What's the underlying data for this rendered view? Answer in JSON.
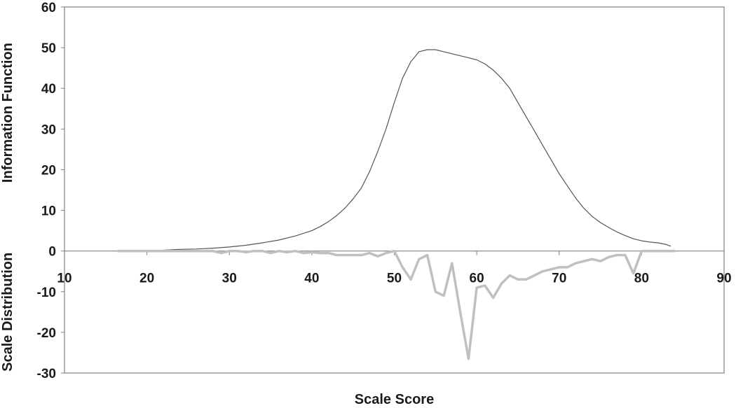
{
  "chart_data": {
    "type": "line",
    "title": "",
    "xlabel": "Scale Score",
    "ylabel_upper": "Information Function",
    "ylabel_lower": "Scale Distribution",
    "xlim": [
      10,
      90
    ],
    "ylim": [
      -30,
      60
    ],
    "x_ticks": [
      10,
      20,
      30,
      40,
      50,
      60,
      70,
      80,
      90
    ],
    "y_ticks": [
      -30,
      -20,
      -10,
      0,
      10,
      20,
      30,
      40,
      50,
      60
    ],
    "grid": false,
    "legend": "none",
    "series": [
      {
        "color": "#555555",
        "x": [
          16.5,
          18,
          20,
          22,
          24,
          26,
          28,
          30,
          32,
          34,
          36,
          38,
          40,
          41,
          42,
          43,
          44,
          45,
          46,
          47,
          48,
          49,
          50,
          51,
          52,
          53,
          54,
          55,
          56,
          57,
          58,
          59,
          60,
          61,
          62,
          63,
          64,
          65,
          66,
          67,
          68,
          69,
          70,
          71,
          72,
          73,
          74,
          75,
          76,
          77,
          78,
          79,
          80,
          81,
          82,
          83,
          83.5
        ],
        "values": [
          0,
          0,
          0,
          0.2,
          0.4,
          0.5,
          0.7,
          1.0,
          1.4,
          2.0,
          2.7,
          3.7,
          5.0,
          6.0,
          7.2,
          8.7,
          10.5,
          12.8,
          15.5,
          19.5,
          24.5,
          30.0,
          36.5,
          42.5,
          46.5,
          49.0,
          49.5,
          49.5,
          49.0,
          48.5,
          48.0,
          47.5,
          47.0,
          46.0,
          44.5,
          42.5,
          40.0,
          36.5,
          33.0,
          29.5,
          26.0,
          22.5,
          19.0,
          16.0,
          13.0,
          10.5,
          8.5,
          7.0,
          5.8,
          4.7,
          3.8,
          3.0,
          2.5,
          2.2,
          2.0,
          1.6,
          1.2
        ]
      },
      {
        "color": "#c0c0c0",
        "x": [
          16.5,
          18,
          20,
          22,
          24,
          26,
          28,
          29,
          30,
          31,
          32,
          33,
          34,
          35,
          36,
          37,
          38,
          39,
          40,
          41,
          42,
          43,
          44,
          45,
          46,
          47,
          48,
          49,
          50,
          51,
          52,
          53,
          54,
          55,
          56,
          57,
          58,
          59,
          60,
          61,
          62,
          63,
          64,
          65,
          66,
          67,
          68,
          69,
          70,
          71,
          72,
          73,
          74,
          75,
          76,
          77,
          78,
          79,
          80,
          81,
          82,
          83,
          84
        ],
        "values": [
          0,
          0,
          0,
          0,
          0,
          0,
          0,
          -0.5,
          0,
          0,
          -0.3,
          0,
          0,
          -0.5,
          0,
          -0.3,
          0,
          -0.5,
          -0.3,
          -0.5,
          -0.5,
          -1.0,
          -1.0,
          -1.0,
          -1.0,
          -0.5,
          -1.3,
          -0.5,
          0,
          -4.0,
          -7.0,
          -2.0,
          -1.0,
          -10.0,
          -11.0,
          -3.0,
          -15.0,
          -26.5,
          -9.0,
          -8.5,
          -11.5,
          -8.0,
          -6.0,
          -7.0,
          -7.0,
          -6.0,
          -5.0,
          -4.5,
          -4.0,
          -4.0,
          -3.0,
          -2.5,
          -2.0,
          -2.5,
          -1.5,
          -1.0,
          -1.0,
          -5.5,
          0,
          0,
          0,
          0,
          0
        ]
      }
    ]
  }
}
